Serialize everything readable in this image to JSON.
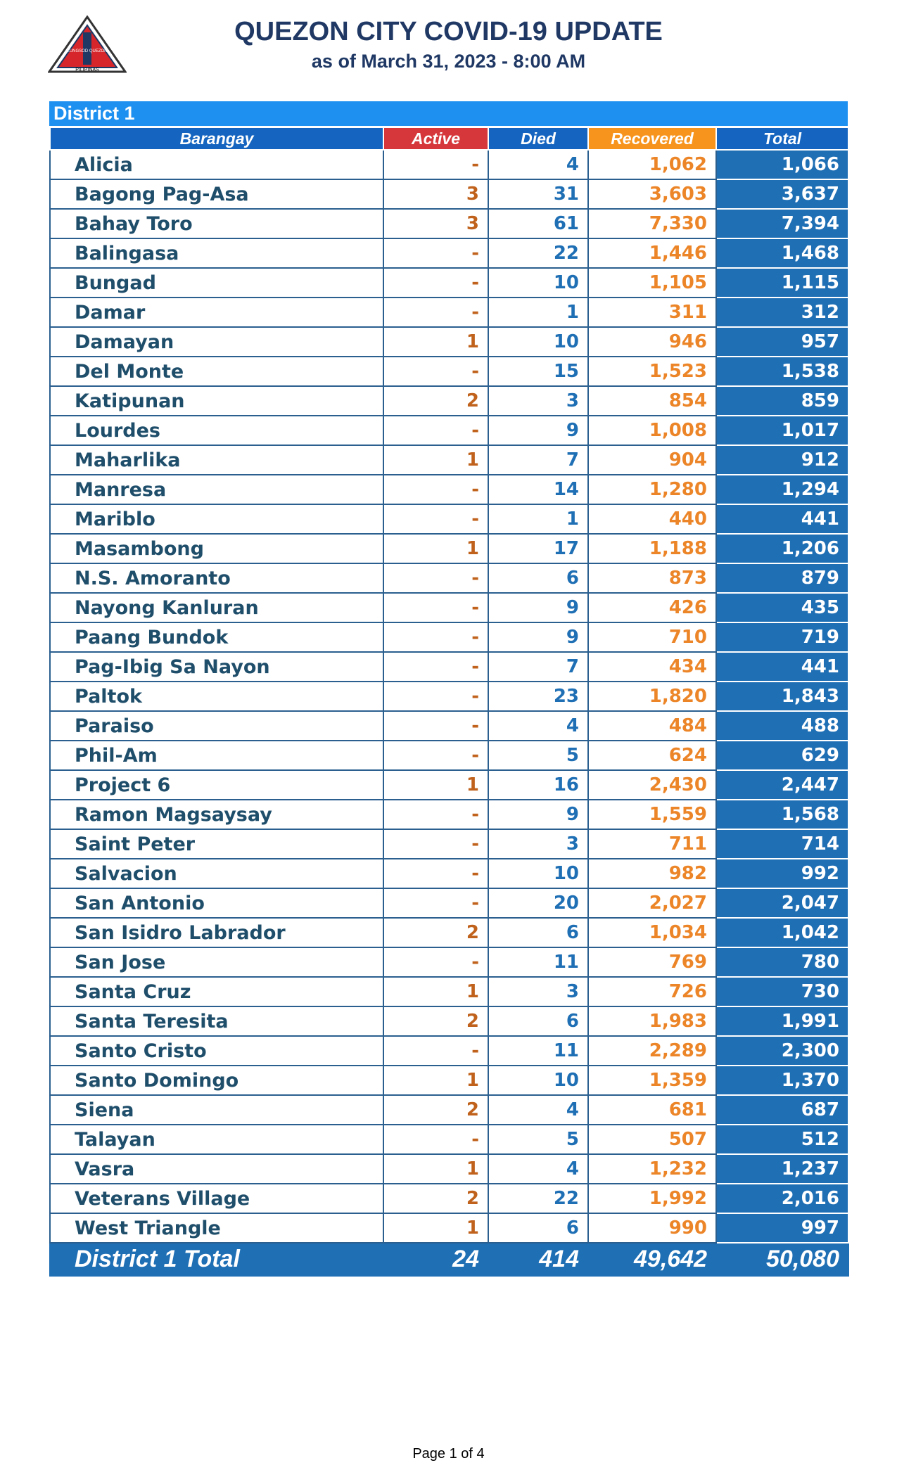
{
  "logo": {
    "top": "LUNGSOD QUEZON",
    "bottom": "PILIPINAS"
  },
  "header": {
    "title": "QUEZON CITY COVID-19 UPDATE",
    "subtitle": "as of March 31, 2023 - 8:00 AM"
  },
  "table": {
    "district": "District 1",
    "columns": [
      "Barangay",
      "Active",
      "Died",
      "Recovered",
      "Total"
    ],
    "rows": [
      [
        "Alicia",
        "-",
        "4",
        "1,062",
        "1,066"
      ],
      [
        "Bagong Pag-Asa",
        "3",
        "31",
        "3,603",
        "3,637"
      ],
      [
        "Bahay Toro",
        "3",
        "61",
        "7,330",
        "7,394"
      ],
      [
        "Balingasa",
        "-",
        "22",
        "1,446",
        "1,468"
      ],
      [
        "Bungad",
        "-",
        "10",
        "1,105",
        "1,115"
      ],
      [
        "Damar",
        "-",
        "1",
        "311",
        "312"
      ],
      [
        "Damayan",
        "1",
        "10",
        "946",
        "957"
      ],
      [
        "Del Monte",
        "-",
        "15",
        "1,523",
        "1,538"
      ],
      [
        "Katipunan",
        "2",
        "3",
        "854",
        "859"
      ],
      [
        "Lourdes",
        "-",
        "9",
        "1,008",
        "1,017"
      ],
      [
        "Maharlika",
        "1",
        "7",
        "904",
        "912"
      ],
      [
        "Manresa",
        "-",
        "14",
        "1,280",
        "1,294"
      ],
      [
        "Mariblo",
        "-",
        "1",
        "440",
        "441"
      ],
      [
        "Masambong",
        "1",
        "17",
        "1,188",
        "1,206"
      ],
      [
        "N.S. Amoranto",
        "-",
        "6",
        "873",
        "879"
      ],
      [
        "Nayong Kanluran",
        "-",
        "9",
        "426",
        "435"
      ],
      [
        "Paang Bundok",
        "-",
        "9",
        "710",
        "719"
      ],
      [
        "Pag-Ibig Sa Nayon",
        "-",
        "7",
        "434",
        "441"
      ],
      [
        "Paltok",
        "-",
        "23",
        "1,820",
        "1,843"
      ],
      [
        "Paraiso",
        "-",
        "4",
        "484",
        "488"
      ],
      [
        "Phil-Am",
        "-",
        "5",
        "624",
        "629"
      ],
      [
        "Project 6",
        "1",
        "16",
        "2,430",
        "2,447"
      ],
      [
        "Ramon Magsaysay",
        "-",
        "9",
        "1,559",
        "1,568"
      ],
      [
        "Saint Peter",
        "-",
        "3",
        "711",
        "714"
      ],
      [
        "Salvacion",
        "-",
        "10",
        "982",
        "992"
      ],
      [
        "San Antonio",
        "-",
        "20",
        "2,027",
        "2,047"
      ],
      [
        "San Isidro Labrador",
        "2",
        "6",
        "1,034",
        "1,042"
      ],
      [
        "San Jose",
        "-",
        "11",
        "769",
        "780"
      ],
      [
        "Santa Cruz",
        "1",
        "3",
        "726",
        "730"
      ],
      [
        "Santa Teresita",
        "2",
        "6",
        "1,983",
        "1,991"
      ],
      [
        "Santo Cristo",
        "-",
        "11",
        "2,289",
        "2,300"
      ],
      [
        "Santo Domingo",
        "1",
        "10",
        "1,359",
        "1,370"
      ],
      [
        "Siena",
        "2",
        "4",
        "681",
        "687"
      ],
      [
        "Talayan",
        "-",
        "5",
        "507",
        "512"
      ],
      [
        "Vasra",
        "1",
        "4",
        "1,232",
        "1,237"
      ],
      [
        "Veterans Village",
        "2",
        "22",
        "1,992",
        "2,016"
      ],
      [
        "West Triangle",
        "1",
        "6",
        "990",
        "997"
      ]
    ],
    "total": [
      "District 1 Total",
      "24",
      "414",
      "49,642",
      "50,080"
    ]
  },
  "footer": {
    "page": "Page 1 of 4"
  }
}
